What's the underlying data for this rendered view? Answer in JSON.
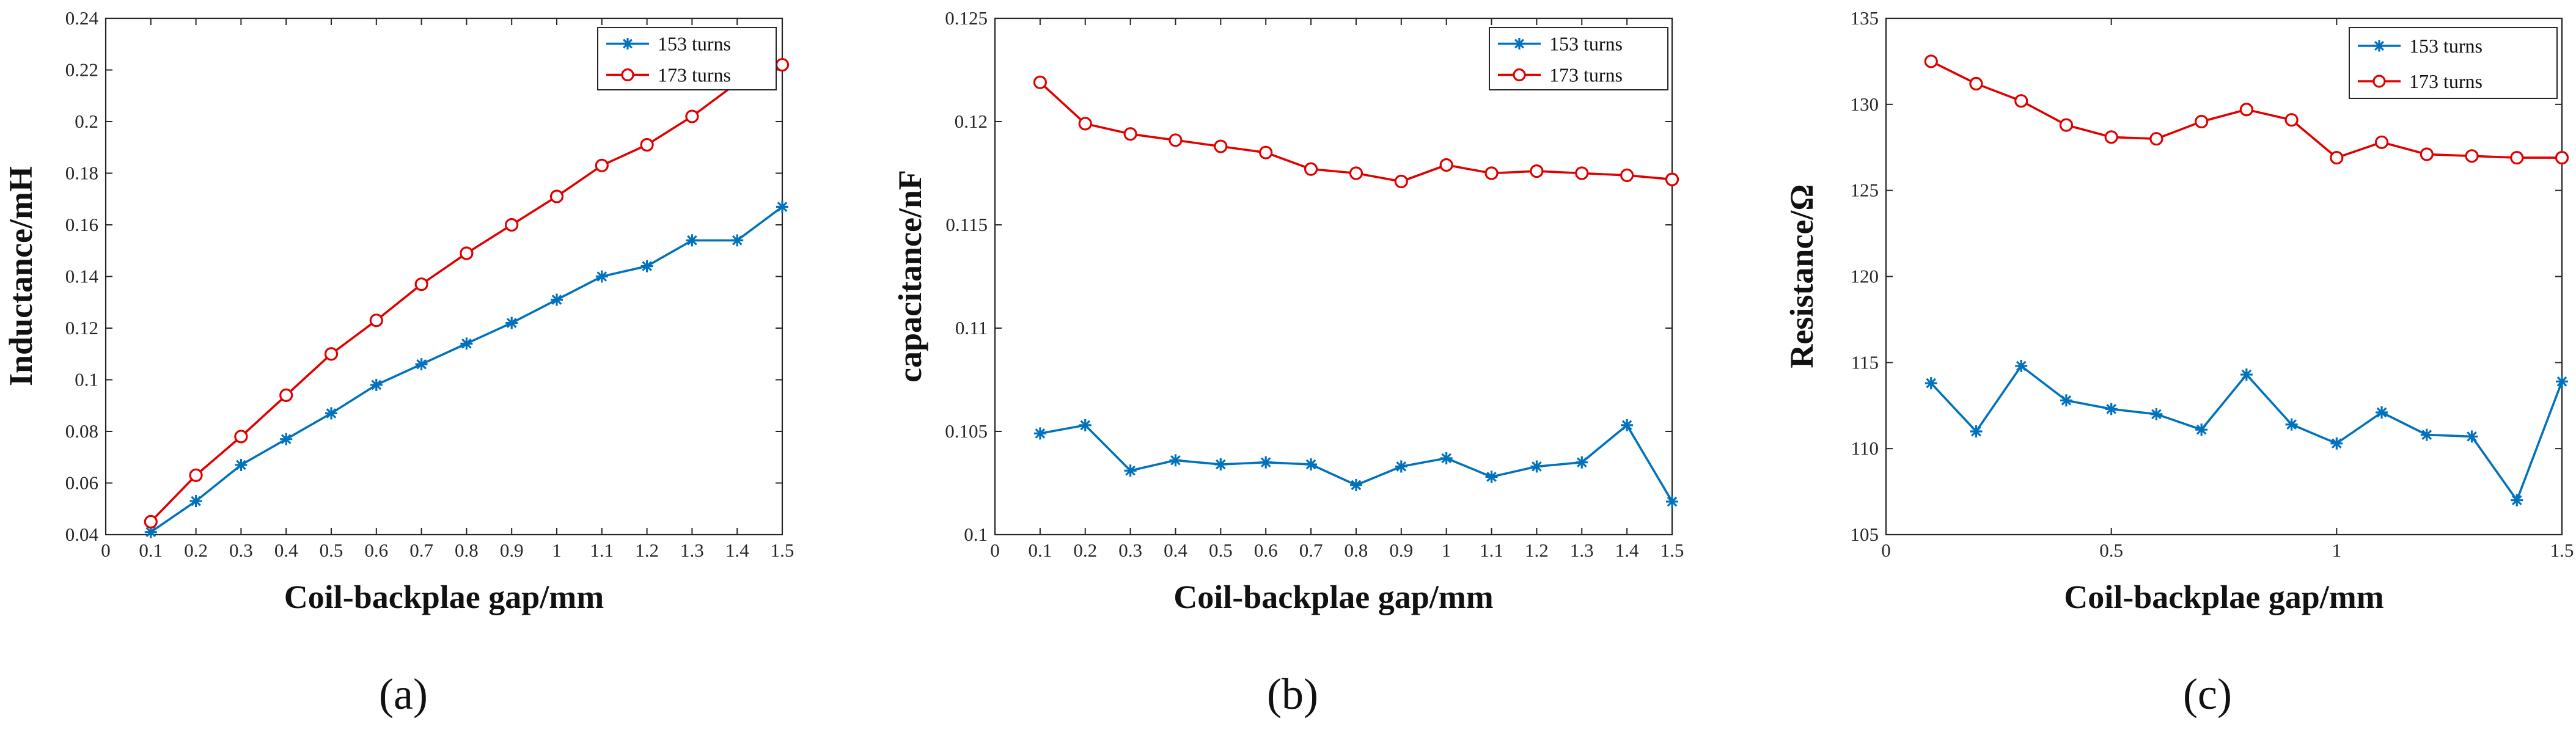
{
  "chart_data": [
    {
      "type": "line",
      "panel_label": "(a)",
      "xlabel": "Coil-backplae gap/mm",
      "ylabel": "Inductance/mH",
      "xlim": [
        0,
        1.5
      ],
      "ylim": [
        0.04,
        0.24
      ],
      "x_ticks": [
        0,
        0.1,
        0.2,
        0.3,
        0.4,
        0.5,
        0.6,
        0.7,
        0.8,
        0.9,
        1,
        1.1,
        1.2,
        1.3,
        1.4,
        1.5
      ],
      "x_tick_labels": [
        "0",
        "0.1",
        "0.2",
        "0.3",
        "0.4",
        "0.5",
        "0.6",
        "0.7",
        "0.8",
        "0.9",
        "1",
        "1.1",
        "1.2",
        "1.3",
        "1.4",
        "1.5"
      ],
      "y_ticks": [
        0.04,
        0.06,
        0.08,
        0.1,
        0.12,
        0.14,
        0.16,
        0.18,
        0.2,
        0.22,
        0.24
      ],
      "y_tick_labels": [
        "0.04",
        "0.06",
        "0.08",
        "0.1",
        "0.12",
        "0.14",
        "0.16",
        "0.18",
        "0.2",
        "0.22",
        "0.24"
      ],
      "grid": false,
      "legend_position": "top-right",
      "x": [
        0.1,
        0.2,
        0.3,
        0.4,
        0.5,
        0.6,
        0.7,
        0.8,
        0.9,
        1.0,
        1.1,
        1.2,
        1.3,
        1.4,
        1.5
      ],
      "series": [
        {
          "name": "153 turns",
          "color": "#0072BD",
          "marker": "asterisk",
          "values": [
            0.041,
            0.053,
            0.067,
            0.077,
            0.087,
            0.098,
            0.106,
            0.114,
            0.122,
            0.131,
            0.14,
            0.144,
            0.154,
            0.154,
            0.167
          ]
        },
        {
          "name": "173 turns",
          "color": "#E00000",
          "marker": "circle",
          "values": [
            0.045,
            0.063,
            0.078,
            0.094,
            0.11,
            0.123,
            0.137,
            0.149,
            0.16,
            0.171,
            0.183,
            0.191,
            0.202,
            0.215,
            0.222
          ]
        }
      ]
    },
    {
      "type": "line",
      "panel_label": "(b)",
      "xlabel": "Coil-backplae gap/mm",
      "ylabel": "capacitance/nF",
      "xlim": [
        0,
        1.5
      ],
      "ylim": [
        0.1,
        0.125
      ],
      "x_ticks": [
        0,
        0.1,
        0.2,
        0.3,
        0.4,
        0.5,
        0.6,
        0.7,
        0.8,
        0.9,
        1,
        1.1,
        1.2,
        1.3,
        1.4,
        1.5
      ],
      "x_tick_labels": [
        "0",
        "0.1",
        "0.2",
        "0.3",
        "0.4",
        "0.5",
        "0.6",
        "0.7",
        "0.8",
        "0.9",
        "1",
        "1.1",
        "1.2",
        "1.3",
        "1.4",
        "1.5"
      ],
      "y_ticks": [
        0.1,
        0.105,
        0.11,
        0.115,
        0.12,
        0.125
      ],
      "y_tick_labels": [
        "0.1",
        "0.105",
        "0.11",
        "0.115",
        "0.12",
        "0.125"
      ],
      "grid": false,
      "legend_position": "top-right",
      "x": [
        0.1,
        0.2,
        0.3,
        0.4,
        0.5,
        0.6,
        0.7,
        0.8,
        0.9,
        1.0,
        1.1,
        1.2,
        1.3,
        1.4,
        1.5
      ],
      "series": [
        {
          "name": "153 turns",
          "color": "#0072BD",
          "marker": "asterisk",
          "values": [
            0.1049,
            0.1053,
            0.1031,
            0.1036,
            0.1034,
            0.1035,
            0.1034,
            0.1024,
            0.1033,
            0.1037,
            0.1028,
            0.1033,
            0.1035,
            0.1053,
            0.1016
          ]
        },
        {
          "name": "173 turns",
          "color": "#E00000",
          "marker": "circle",
          "values": [
            0.1219,
            0.1199,
            0.1194,
            0.1191,
            0.1188,
            0.1185,
            0.1177,
            0.1175,
            0.1171,
            0.1179,
            0.1175,
            0.1176,
            0.1175,
            0.1174,
            0.1172
          ]
        }
      ]
    },
    {
      "type": "line",
      "panel_label": "(c)",
      "xlabel": "Coil-backplae gap/mm",
      "ylabel": "Resistance/Ω",
      "xlim": [
        0,
        1.5
      ],
      "ylim": [
        105,
        135
      ],
      "x_ticks": [
        0,
        0.5,
        1,
        1.5
      ],
      "x_tick_labels": [
        "0",
        "0.5",
        "1",
        "1.5"
      ],
      "y_ticks": [
        105,
        110,
        115,
        120,
        125,
        130,
        135
      ],
      "y_tick_labels": [
        "105",
        "110",
        "115",
        "120",
        "125",
        "130",
        "135"
      ],
      "grid": false,
      "legend_position": "top-right",
      "x": [
        0.1,
        0.2,
        0.3,
        0.4,
        0.5,
        0.6,
        0.7,
        0.8,
        0.9,
        1.0,
        1.1,
        1.2,
        1.3,
        1.4,
        1.5
      ],
      "series": [
        {
          "name": "153 turns",
          "color": "#0072BD",
          "marker": "asterisk",
          "values": [
            113.8,
            111.0,
            114.8,
            112.8,
            112.3,
            112.0,
            111.1,
            114.3,
            111.4,
            110.3,
            112.1,
            110.8,
            110.7,
            107.0,
            113.9
          ]
        },
        {
          "name": "173 turns",
          "color": "#E00000",
          "marker": "circle",
          "values": [
            132.5,
            131.2,
            130.2,
            128.8,
            128.1,
            128.0,
            129.0,
            129.7,
            129.1,
            126.9,
            127.8,
            127.1,
            127.0,
            126.9,
            126.9
          ]
        }
      ]
    }
  ]
}
